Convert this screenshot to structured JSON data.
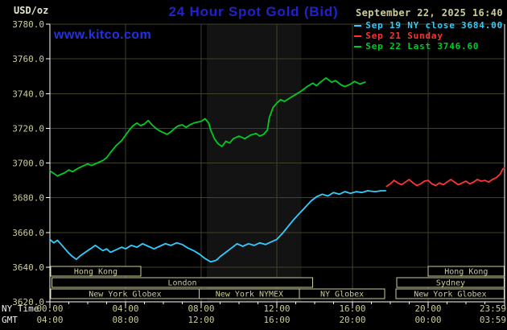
{
  "header": {
    "units_label": "USD/oz",
    "title": "24 Hour Spot Gold (Bid)",
    "datetime": "September 22, 2025 16:40",
    "watermark": "www.kitco.com"
  },
  "colors": {
    "background": "#000000",
    "title_blue": "#2222cc",
    "link_blue": "#2233dd",
    "axis_text": "#cccc99",
    "axis_label_text": "#f0f0f0",
    "units_text": "#e6e6cf",
    "axis_line": "#ffffff",
    "grid": "#41412c",
    "session_border": "#cccc99",
    "nymex_band": "#131313",
    "cyan": "#33ccff",
    "red": "#ff3333",
    "green": "#00cc22"
  },
  "legend": [
    {
      "label": "Sep 19 NY close 3684.00",
      "color": "#33ccff"
    },
    {
      "label": "Sep 21 Sunday",
      "color": "#ff3333"
    },
    {
      "label": "Sep 22 Last 3746.60",
      "color": "#00cc22"
    }
  ],
  "y_axis": {
    "ticks": [
      "3780.0",
      "3760.0",
      "3740.0",
      "3720.0",
      "3700.0",
      "3680.0",
      "3660.0",
      "3640.0",
      "3620.0"
    ]
  },
  "x_axis": {
    "ny_label": "NY Time",
    "gmt_label": "GMT",
    "ticks": [
      {
        "h": 0,
        "ny": "00:00",
        "gmt": "04:00"
      },
      {
        "h": 4,
        "ny": "04:00",
        "gmt": "08:00"
      },
      {
        "h": 8,
        "ny": "08:00",
        "gmt": "12:00"
      },
      {
        "h": 12,
        "ny": "12:00",
        "gmt": "16:00"
      },
      {
        "h": 16,
        "ny": "16:00",
        "gmt": "20:00"
      },
      {
        "h": 20,
        "ny": "20:00",
        "gmt": "00:00"
      },
      {
        "h": 24,
        "ny": "23:59",
        "gmt": "03:59"
      }
    ]
  },
  "sessions": [
    {
      "items": [
        {
          "label": "Hong Kong",
          "start": 0.05,
          "end": 4.8
        },
        {
          "label": "Hong Kong",
          "start": 20.0,
          "end": 24.03
        }
      ]
    },
    {
      "items": [
        {
          "label": "London",
          "start": 0.1,
          "end": 13.9
        },
        {
          "label": "Sydney",
          "start": 18.35,
          "end": 24.03
        }
      ]
    },
    {
      "items": [
        {
          "label": "New York Globex",
          "start": 0.05,
          "end": 7.9
        },
        {
          "label": "New York NYMEX",
          "start": 7.9,
          "end": 13.2
        },
        {
          "label": "NY Globex",
          "start": 13.2,
          "end": 17.7
        },
        {
          "label": "New York Globex",
          "start": 18.3,
          "end": 24.03
        }
      ]
    }
  ],
  "chart_data": {
    "type": "line",
    "title": "24 Hour Spot Gold (Bid)",
    "xlabel": "NY Time (hours 00:00-23:59)",
    "ylabel": "USD/oz",
    "ylim": [
      3620,
      3780
    ],
    "xlim": [
      0,
      24.05
    ],
    "grid": true,
    "legend_position": "top-right",
    "shaded_region": {
      "start_hour": 8.3,
      "end_hour": 13.3
    },
    "series": [
      {
        "id": "sep19",
        "name": "Sep 19 NY close",
        "color": "#33ccff",
        "close": 3684.0,
        "points": [
          [
            0,
            3656
          ],
          [
            0.2,
            3654
          ],
          [
            0.4,
            3655.5
          ],
          [
            0.6,
            3653
          ],
          [
            0.8,
            3650.5
          ],
          [
            1,
            3648
          ],
          [
            1.2,
            3646
          ],
          [
            1.4,
            3644.5
          ],
          [
            1.6,
            3646.5
          ],
          [
            1.8,
            3648
          ],
          [
            2,
            3649.5
          ],
          [
            2.2,
            3651
          ],
          [
            2.4,
            3652.5
          ],
          [
            2.6,
            3651
          ],
          [
            2.8,
            3649.5
          ],
          [
            3,
            3650.5
          ],
          [
            3.2,
            3648.5
          ],
          [
            3.5,
            3650
          ],
          [
            3.8,
            3651.5
          ],
          [
            4,
            3650.5
          ],
          [
            4.3,
            3652.5
          ],
          [
            4.6,
            3651.5
          ],
          [
            4.9,
            3653.5
          ],
          [
            5.2,
            3652
          ],
          [
            5.5,
            3650.5
          ],
          [
            5.8,
            3652
          ],
          [
            6.1,
            3653.5
          ],
          [
            6.4,
            3652.5
          ],
          [
            6.7,
            3654
          ],
          [
            7,
            3653
          ],
          [
            7.3,
            3651
          ],
          [
            7.6,
            3649.5
          ],
          [
            7.9,
            3647.5
          ],
          [
            8.2,
            3645
          ],
          [
            8.5,
            3643
          ],
          [
            8.8,
            3644
          ],
          [
            9,
            3646
          ],
          [
            9.3,
            3648.5
          ],
          [
            9.6,
            3651
          ],
          [
            9.9,
            3653.5
          ],
          [
            10.2,
            3652
          ],
          [
            10.5,
            3653.5
          ],
          [
            10.8,
            3652.5
          ],
          [
            11.1,
            3654
          ],
          [
            11.4,
            3653
          ],
          [
            11.7,
            3654.5
          ],
          [
            12,
            3656
          ],
          [
            12.3,
            3659.5
          ],
          [
            12.6,
            3663.5
          ],
          [
            12.9,
            3667.5
          ],
          [
            13.2,
            3671
          ],
          [
            13.5,
            3674.5
          ],
          [
            13.8,
            3678
          ],
          [
            14.1,
            3680.5
          ],
          [
            14.4,
            3682
          ],
          [
            14.7,
            3681
          ],
          [
            15,
            3683
          ],
          [
            15.3,
            3682
          ],
          [
            15.6,
            3683.5
          ],
          [
            15.9,
            3682.5
          ],
          [
            16.2,
            3683.5
          ],
          [
            16.5,
            3683
          ],
          [
            16.8,
            3684
          ],
          [
            17.2,
            3683.5
          ],
          [
            17.5,
            3684
          ],
          [
            17.75,
            3684
          ]
        ]
      },
      {
        "id": "sep21",
        "name": "Sep 21 Sunday",
        "color": "#ff3333",
        "points": [
          [
            17.8,
            3686.5
          ],
          [
            18,
            3688
          ],
          [
            18.2,
            3690
          ],
          [
            18.4,
            3688.5
          ],
          [
            18.6,
            3687.5
          ],
          [
            18.8,
            3689
          ],
          [
            19,
            3690.5
          ],
          [
            19.2,
            3688.5
          ],
          [
            19.4,
            3687
          ],
          [
            19.6,
            3688
          ],
          [
            19.8,
            3689.5
          ],
          [
            20,
            3690
          ],
          [
            20.2,
            3688
          ],
          [
            20.4,
            3687
          ],
          [
            20.6,
            3688.5
          ],
          [
            20.8,
            3687.5
          ],
          [
            21,
            3689
          ],
          [
            21.2,
            3690.5
          ],
          [
            21.4,
            3689
          ],
          [
            21.6,
            3687.5
          ],
          [
            21.8,
            3688.5
          ],
          [
            22,
            3689.5
          ],
          [
            22.2,
            3688
          ],
          [
            22.4,
            3689
          ],
          [
            22.6,
            3690.5
          ],
          [
            22.8,
            3689.5
          ],
          [
            23,
            3690
          ],
          [
            23.2,
            3689
          ],
          [
            23.4,
            3690.5
          ],
          [
            23.6,
            3691.5
          ],
          [
            23.8,
            3693.5
          ],
          [
            23.95,
            3696.5
          ],
          [
            24.03,
            3697
          ]
        ]
      },
      {
        "id": "sep22",
        "name": "Sep 22",
        "color": "#00cc22",
        "last": 3746.6,
        "points": [
          [
            0,
            3695.5
          ],
          [
            0.2,
            3694
          ],
          [
            0.4,
            3692.5
          ],
          [
            0.6,
            3693.5
          ],
          [
            0.8,
            3694.5
          ],
          [
            1,
            3696
          ],
          [
            1.2,
            3695
          ],
          [
            1.5,
            3697
          ],
          [
            1.8,
            3698.5
          ],
          [
            2,
            3699.5
          ],
          [
            2.2,
            3698.5
          ],
          [
            2.5,
            3700
          ],
          [
            2.8,
            3701.5
          ],
          [
            3,
            3703
          ],
          [
            3.2,
            3706
          ],
          [
            3.5,
            3710
          ],
          [
            3.8,
            3713
          ],
          [
            4,
            3716
          ],
          [
            4.2,
            3719
          ],
          [
            4.4,
            3721.5
          ],
          [
            4.6,
            3723
          ],
          [
            4.8,
            3721.5
          ],
          [
            5,
            3722.5
          ],
          [
            5.2,
            3724.5
          ],
          [
            5.4,
            3722
          ],
          [
            5.6,
            3720
          ],
          [
            5.8,
            3718.5
          ],
          [
            6,
            3717.5
          ],
          [
            6.2,
            3716.5
          ],
          [
            6.4,
            3718
          ],
          [
            6.6,
            3720
          ],
          [
            6.8,
            3721.5
          ],
          [
            7,
            3722
          ],
          [
            7.2,
            3720.5
          ],
          [
            7.4,
            3722
          ],
          [
            7.6,
            3723
          ],
          [
            7.8,
            3723.5
          ],
          [
            8,
            3724
          ],
          [
            8.2,
            3725.5
          ],
          [
            8.4,
            3723
          ],
          [
            8.5,
            3719
          ],
          [
            8.7,
            3714
          ],
          [
            8.9,
            3711
          ],
          [
            9.1,
            3709.5
          ],
          [
            9.3,
            3712.5
          ],
          [
            9.5,
            3711.5
          ],
          [
            9.7,
            3714
          ],
          [
            10,
            3715.5
          ],
          [
            10.3,
            3714
          ],
          [
            10.6,
            3716
          ],
          [
            10.9,
            3717
          ],
          [
            11.1,
            3715.5
          ],
          [
            11.3,
            3716.5
          ],
          [
            11.5,
            3719
          ],
          [
            11.6,
            3726
          ],
          [
            11.8,
            3732
          ],
          [
            12,
            3734.5
          ],
          [
            12.2,
            3736.5
          ],
          [
            12.4,
            3735.5
          ],
          [
            12.7,
            3737.5
          ],
          [
            13,
            3739.5
          ],
          [
            13.3,
            3741.5
          ],
          [
            13.6,
            3744
          ],
          [
            13.9,
            3746
          ],
          [
            14.1,
            3744.5
          ],
          [
            14.3,
            3746.5
          ],
          [
            14.6,
            3749
          ],
          [
            14.9,
            3746.5
          ],
          [
            15.1,
            3747.5
          ],
          [
            15.4,
            3745
          ],
          [
            15.6,
            3744
          ],
          [
            15.9,
            3745.5
          ],
          [
            16.1,
            3747
          ],
          [
            16.4,
            3745.5
          ],
          [
            16.67,
            3746.6
          ]
        ]
      }
    ]
  }
}
